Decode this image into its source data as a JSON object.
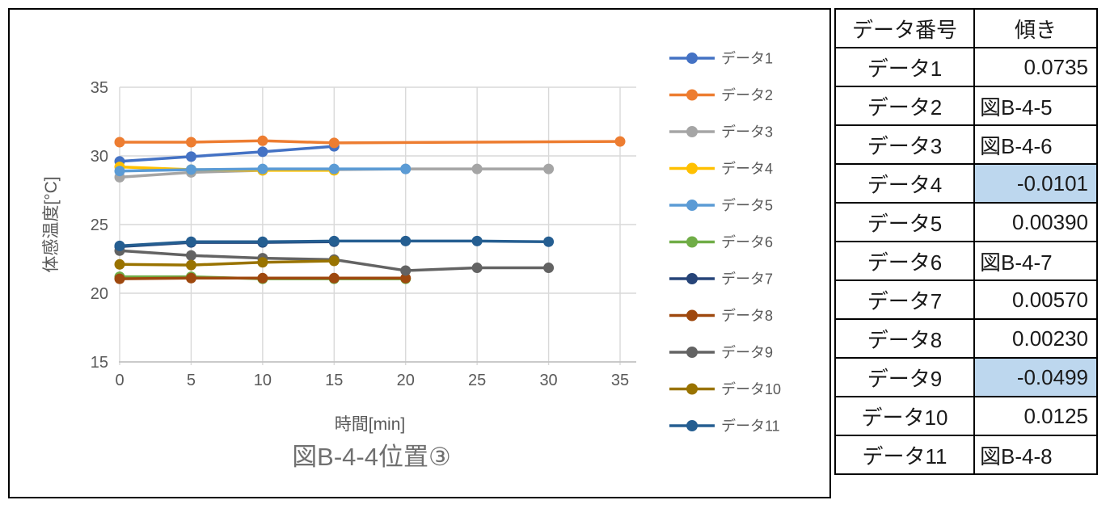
{
  "figure": {
    "caption": "図B-4-4位置③"
  },
  "chart_data": {
    "type": "line",
    "title": "図B-4-4位置③",
    "xlabel": "時間[min]",
    "ylabel": "体感温度[°C]",
    "xlim": [
      0,
      35
    ],
    "ylim": [
      15,
      35
    ],
    "x_ticks": [
      0,
      5,
      10,
      15,
      20,
      25,
      30,
      35
    ],
    "y_ticks": [
      15,
      20,
      25,
      30,
      35
    ],
    "grid": true,
    "legend_position": "right",
    "series": [
      {
        "name": "データ1",
        "color": "#4472C4",
        "x": [
          0,
          5,
          10,
          15
        ],
        "y": [
          29.6,
          29.95,
          30.3,
          30.7
        ]
      },
      {
        "name": "データ2",
        "color": "#ED7D31",
        "x": [
          0,
          5,
          10,
          15,
          35
        ],
        "y": [
          31.0,
          31.0,
          31.1,
          30.95,
          31.05
        ]
      },
      {
        "name": "データ3",
        "color": "#A5A5A5",
        "x": [
          0,
          5,
          10,
          15,
          20,
          25,
          30
        ],
        "y": [
          28.45,
          28.8,
          28.95,
          29.0,
          29.05,
          29.05,
          29.05
        ]
      },
      {
        "name": "データ4",
        "color": "#FFC000",
        "x": [
          0,
          5,
          10,
          15
        ],
        "y": [
          29.2,
          29.0,
          28.95,
          28.95
        ]
      },
      {
        "name": "データ5",
        "color": "#5B9BD5",
        "x": [
          0,
          5,
          10,
          15,
          20
        ],
        "y": [
          28.9,
          29.0,
          29.05,
          29.05,
          29.05
        ]
      },
      {
        "name": "データ6",
        "color": "#70AD47",
        "x": [
          0,
          5,
          10,
          15,
          20
        ],
        "y": [
          21.2,
          21.2,
          21.05,
          21.05,
          21.05
        ]
      },
      {
        "name": "データ7",
        "color": "#264478",
        "x": [
          0,
          5,
          10,
          15
        ],
        "y": [
          23.4,
          23.7,
          23.7,
          23.75
        ]
      },
      {
        "name": "データ8",
        "color": "#9E480E",
        "x": [
          0,
          5,
          10,
          15,
          20
        ],
        "y": [
          21.05,
          21.1,
          21.1,
          21.1,
          21.1
        ]
      },
      {
        "name": "データ9",
        "color": "#636363",
        "x": [
          0,
          5,
          10,
          15,
          20,
          25,
          30
        ],
        "y": [
          23.1,
          22.75,
          22.55,
          22.45,
          21.65,
          21.85,
          21.85
        ]
      },
      {
        "name": "データ10",
        "color": "#997300",
        "x": [
          0,
          5,
          10,
          15
        ],
        "y": [
          22.1,
          22.05,
          22.25,
          22.35
        ]
      },
      {
        "name": "データ11",
        "color": "#255E91",
        "x": [
          0,
          5,
          10,
          15,
          20,
          25,
          30
        ],
        "y": [
          23.45,
          23.75,
          23.75,
          23.8,
          23.8,
          23.8,
          23.75
        ]
      }
    ]
  },
  "table": {
    "headers": [
      "データ番号",
      "傾き"
    ],
    "highlight_color": "#BDD7EE",
    "rows": [
      {
        "label": "データ1",
        "slope": "0.0735",
        "highlight": false
      },
      {
        "label": "データ2",
        "slope": "図B-4-5",
        "highlight": false
      },
      {
        "label": "データ3",
        "slope": "図B-4-6",
        "highlight": false
      },
      {
        "label": "データ4",
        "slope": "-0.0101",
        "highlight": true
      },
      {
        "label": "データ5",
        "slope": "0.00390",
        "highlight": false
      },
      {
        "label": "データ6",
        "slope": "図B-4-7",
        "highlight": false
      },
      {
        "label": "データ7",
        "slope": "0.00570",
        "highlight": false
      },
      {
        "label": "データ8",
        "slope": "0.00230",
        "highlight": false
      },
      {
        "label": "データ9",
        "slope": "-0.0499",
        "highlight": true
      },
      {
        "label": "データ10",
        "slope": "0.0125",
        "highlight": false
      },
      {
        "label": "データ11",
        "slope": "図B-4-8",
        "highlight": false
      }
    ]
  },
  "colors": {
    "grid": "#D9D9D9",
    "axis_line": "#BFBFBF",
    "axis_text": "#595959",
    "title_text": "#707070",
    "panel_border": "#000000"
  }
}
